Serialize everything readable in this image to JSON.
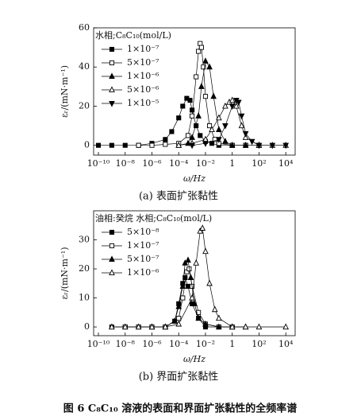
{
  "chart_data": [
    {
      "type": "line",
      "caption": "(a) 表面扩张黏性",
      "xlabel": "ω/Hz",
      "ylabel": "εᵣ/(mN·m⁻¹)",
      "log_x": true,
      "legend_title": "水相;C₈C₁₀(mol/L)",
      "legend": "upper left",
      "xlim": [
        4.4e-11,
        50000
      ],
      "ylim": [
        -5,
        60
      ],
      "xticks": [
        {
          "value": 1e-10,
          "label": "10⁻¹⁰"
        },
        {
          "value": 1e-08,
          "label": "10⁻⁸"
        },
        {
          "value": 1e-06,
          "label": "10⁻⁶"
        },
        {
          "value": 0.0001,
          "label": "10⁻⁴"
        },
        {
          "value": 0.01,
          "label": "10⁻²"
        },
        1,
        {
          "value": 100,
          "label": "10²"
        },
        {
          "value": 10000,
          "label": "10⁴"
        }
      ],
      "yticks": [
        0,
        20,
        40,
        60
      ],
      "series": [
        {
          "name": "1×10⁻⁷",
          "color": "#000000",
          "marker": "square",
          "filled": true,
          "x": [
            1e-10,
            1e-09,
            1e-08,
            1e-07,
            1e-06,
            1e-05,
            3e-05,
            0.0001,
            0.0002,
            0.0004,
            0.0007,
            0.001,
            0.002,
            0.004,
            0.01,
            0.03,
            0.1,
            1,
            10,
            100
          ],
          "values": [
            0,
            0,
            0,
            0,
            1,
            3,
            7,
            14,
            20,
            24,
            23,
            18,
            10,
            5,
            2,
            1,
            0,
            0,
            0,
            0
          ]
        },
        {
          "name": "5×10⁻⁷",
          "color": "#000000",
          "marker": "square",
          "filled": false,
          "x": [
            1e-07,
            1e-06,
            1e-05,
            0.0001,
            0.0005,
            0.001,
            0.002,
            0.003,
            0.004,
            0.005,
            0.007,
            0.01,
            0.02,
            0.05,
            0.1,
            1,
            10
          ],
          "values": [
            0,
            0,
            0.5,
            1,
            5,
            15,
            35,
            48,
            52,
            50,
            40,
            25,
            10,
            3,
            1,
            0,
            0
          ]
        },
        {
          "name": "1×10⁻⁶",
          "color": "#000000",
          "marker": "triangle",
          "filled": true,
          "x": [
            0.0001,
            0.0005,
            0.001,
            0.003,
            0.005,
            0.01,
            0.02,
            0.04,
            0.1,
            0.3,
            1,
            10,
            100
          ],
          "values": [
            0,
            1,
            4,
            15,
            30,
            43,
            40,
            25,
            8,
            2,
            0,
            0,
            0
          ]
        },
        {
          "name": "5×10⁻⁶",
          "color": "#000000",
          "marker": "triangle",
          "filled": false,
          "x": [
            0.0001,
            0.001,
            0.01,
            0.03,
            0.1,
            0.3,
            0.6,
            1,
            2,
            5,
            10,
            100,
            1000,
            10000
          ],
          "values": [
            0,
            1,
            3,
            8,
            14,
            20,
            22,
            23,
            20,
            10,
            4,
            0,
            0,
            0
          ]
        },
        {
          "name": "1×10⁻⁵",
          "color": "#000000",
          "marker": "down-triangle",
          "filled": true,
          "x": [
            0.001,
            0.01,
            0.1,
            0.3,
            1,
            2,
            3,
            5,
            10,
            30,
            100,
            1000,
            10000
          ],
          "values": [
            0,
            1,
            3,
            10,
            20,
            23,
            22,
            15,
            6,
            2,
            0,
            0,
            0
          ]
        }
      ]
    },
    {
      "type": "line",
      "caption": "(b) 界面扩张黏性",
      "xlabel": "ω/Hz",
      "ylabel": "εᵣ/(mN·m⁻¹)",
      "log_x": true,
      "legend_title": "油相:癸烷 水相;C₈C₁₀(mol/L)",
      "legend": "upper left",
      "xlim": [
        4.4e-11,
        50000
      ],
      "ylim": [
        -3,
        40
      ],
      "xticks": [
        {
          "value": 1e-10,
          "label": "10⁻¹⁰"
        },
        {
          "value": 1e-08,
          "label": "10⁻⁸"
        },
        {
          "value": 1e-06,
          "label": "10⁻⁶"
        },
        {
          "value": 0.0001,
          "label": "10⁻⁴"
        },
        {
          "value": 0.01,
          "label": "10⁻²"
        },
        1,
        {
          "value": 100,
          "label": "10²"
        },
        {
          "value": 10000,
          "label": "10⁴"
        }
      ],
      "yticks": [
        0,
        10,
        20,
        30
      ],
      "series": [
        {
          "name": "5×10⁻⁸",
          "color": "#000000",
          "marker": "square",
          "filled": true,
          "x": [
            1e-09,
            1e-08,
            1e-07,
            1e-06,
            1e-05,
            5e-05,
            0.0001,
            0.0002,
            0.0003,
            0.0005,
            0.001,
            0.003,
            0.01,
            0.1,
            1
          ],
          "values": [
            0,
            0,
            0,
            0,
            0,
            2,
            8,
            15,
            17,
            14,
            8,
            3,
            0,
            0,
            0
          ]
        },
        {
          "name": "1×10⁻⁷",
          "color": "#000000",
          "marker": "square",
          "filled": false,
          "x": [
            1e-08,
            1e-07,
            1e-06,
            1e-05,
            0.0001,
            0.0002,
            0.0004,
            0.0006,
            0.001,
            0.003,
            0.01,
            0.1,
            1
          ],
          "values": [
            0,
            0,
            0,
            0,
            3,
            10,
            19,
            20,
            14,
            5,
            1,
            0,
            0
          ]
        },
        {
          "name": "5×10⁻⁷",
          "color": "#000000",
          "marker": "triangle",
          "filled": true,
          "x": [
            1e-06,
            1e-05,
            5e-05,
            0.0001,
            0.0002,
            0.0003,
            0.0005,
            0.0008,
            0.0015,
            0.003,
            0.01,
            0.1,
            1,
            10
          ],
          "values": [
            0,
            0,
            2,
            7,
            14,
            22,
            23,
            17,
            8,
            3,
            1,
            0,
            0,
            0
          ]
        },
        {
          "name": "1×10⁻⁶",
          "color": "#000000",
          "marker": "triangle",
          "filled": false,
          "x": [
            1e-09,
            1e-08,
            1e-07,
            1e-06,
            1e-05,
            0.0001,
            0.001,
            0.002,
            0.004,
            0.006,
            0.01,
            0.02,
            0.05,
            0.1,
            1,
            10,
            100,
            10000
          ],
          "values": [
            0,
            0,
            0,
            0,
            0,
            1,
            10,
            22,
            33,
            34,
            26,
            15,
            6,
            3,
            0,
            0,
            0,
            0
          ]
        }
      ]
    }
  ],
  "figure_caption": "图 6   C₈C₁₀ 溶液的表面和界面扩张黏性的全频率谱"
}
